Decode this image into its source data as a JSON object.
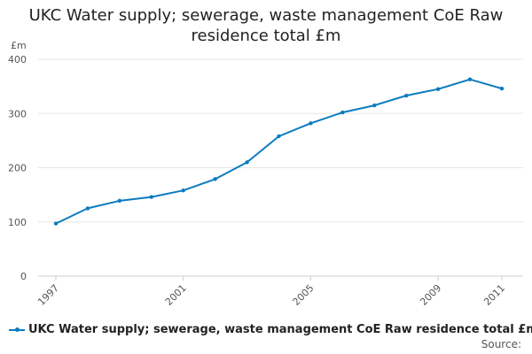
{
  "chart_data": {
    "type": "line",
    "title": "UKC Water supply; sewerage, waste management CoE Raw residence total £m",
    "ylabel": "£m",
    "xlabel": "",
    "ylim": [
      0,
      400
    ],
    "yticks": [
      0,
      100,
      200,
      300,
      400
    ],
    "xlim": [
      1997,
      2011
    ],
    "xticks": [
      1997,
      2001,
      2005,
      2009,
      2011
    ],
    "grid": true,
    "legend_position": "bottom",
    "x": [
      1997,
      1998,
      1999,
      2000,
      2001,
      2002,
      2003,
      2004,
      2005,
      2006,
      2007,
      2008,
      2009,
      2010,
      2011
    ],
    "series": [
      {
        "name": "UKC Water supply; sewerage, waste management CoE Raw residence total £m",
        "color": "#0b7bbf",
        "values": [
          97,
          125,
          139,
          146,
          158,
          179,
          210,
          258,
          282,
          302,
          315,
          333,
          345,
          363,
          346
        ]
      }
    ]
  },
  "source_label": "Source:"
}
